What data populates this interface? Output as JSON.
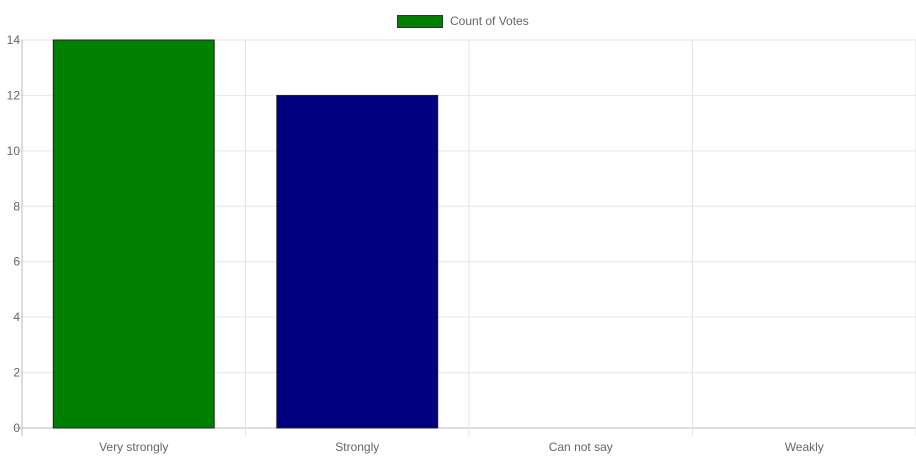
{
  "chart_data": {
    "type": "bar",
    "categories": [
      "Very strongly",
      "Strongly",
      "Can not say",
      "Weakly"
    ],
    "series": [
      {
        "name": "Count of Votes",
        "values": [
          14,
          12,
          0,
          0
        ]
      }
    ],
    "bar_colors": [
      "#008000",
      "#000080",
      "#008000",
      "#008000"
    ],
    "legend_color": "#008000",
    "ylim": [
      0,
      14
    ],
    "yticks": [
      "0",
      "2",
      "4",
      "6",
      "8",
      "10",
      "12",
      "14"
    ],
    "grid": true,
    "legend": "top-center"
  }
}
